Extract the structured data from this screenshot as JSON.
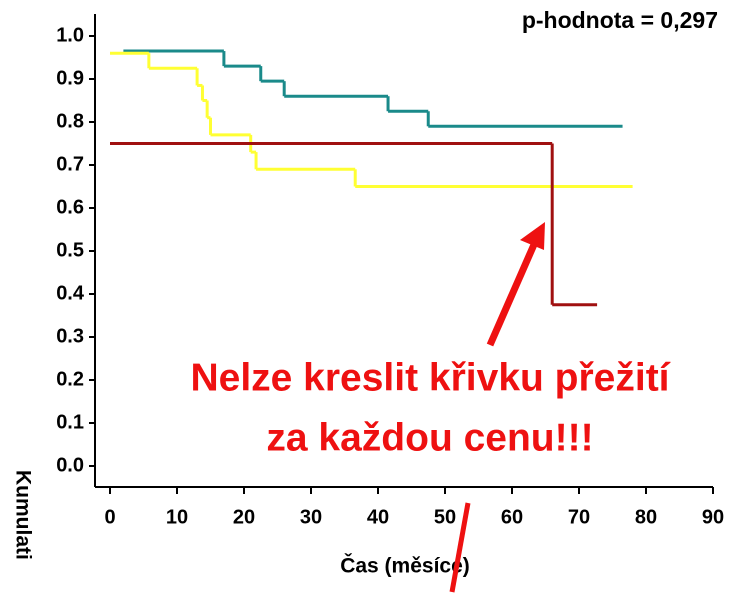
{
  "chart_data": {
    "type": "step",
    "xlabel": "Čas (měsíce)",
    "ylabel": "Kumulati",
    "annotations": [
      "p-hodnota = 0,297",
      "Nelze kreslit křivku přežití",
      "za každou cenu!!!"
    ],
    "xlim": [
      0,
      90
    ],
    "xticks": [
      0,
      10,
      20,
      30,
      40,
      50,
      60,
      70,
      80,
      90
    ],
    "ylim": [
      0,
      1
    ],
    "yticks": [
      {
        "value": 0,
        "label": "0.0"
      },
      0.1,
      0.2,
      0.3,
      0.4,
      0.5,
      0.6,
      0.7,
      0.8,
      0.9,
      {
        "value": 1,
        "label": "1.0"
      }
    ],
    "series": [
      {
        "color": "#1a8a8a",
        "x": [
          2,
          17,
          22.5,
          26,
          41.5,
          47.5,
          76.5
        ],
        "values": [
          0.965,
          0.93,
          0.895,
          0.86,
          0.825,
          0.79,
          0.79
        ]
      },
      {
        "color": "#ffff33",
        "x": [
          0,
          5.8,
          13,
          13.8,
          14.5,
          15,
          21,
          21.8,
          36.6,
          78
        ],
        "values": [
          0.96,
          0.925,
          0.885,
          0.85,
          0.81,
          0.77,
          0.73,
          0.69,
          0.65,
          0.65
        ]
      },
      {
        "color": "#a01010",
        "x": [
          0,
          66,
          72.7
        ],
        "values": [
          0.75,
          0.375,
          0.375
        ]
      }
    ]
  }
}
